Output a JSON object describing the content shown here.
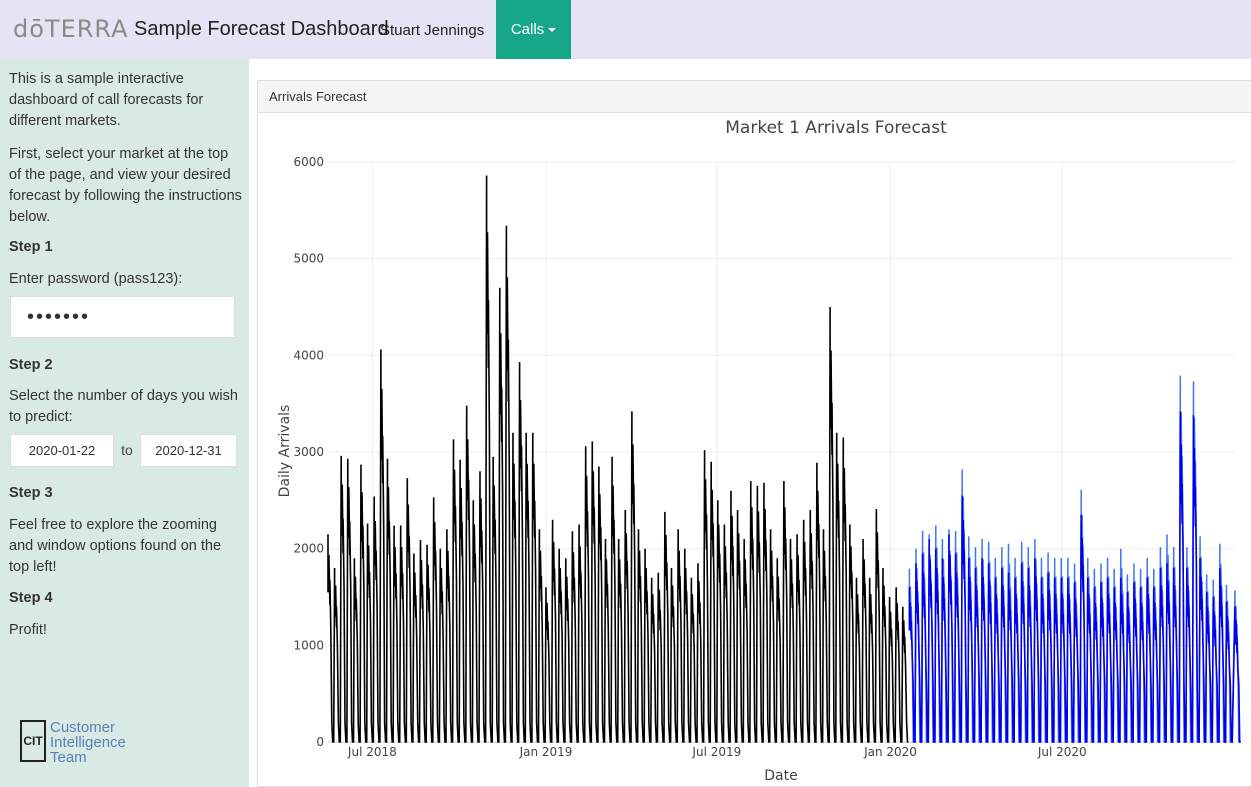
{
  "navbar": {
    "logo": "dōTERRA",
    "title": "Sample Forecast Dashboard",
    "user": "Stuart Jennings",
    "calls_menu": "Calls"
  },
  "sidebar": {
    "intro": "This is a sample interactive dashboard of call forecasts for different markets.",
    "instructions": "First, select your market at the top of the page, and view your desired forecast by following the instructions below.",
    "step1_title": "Step 1",
    "step1_label": "Enter password (pass123):",
    "password_value": "•••••••",
    "step2_title": "Step 2",
    "step2_label": "Select the number of days you wish to predict:",
    "date_start": "2020-01-22",
    "date_to": "to",
    "date_end": "2020-12-31",
    "step3_title": "Step 3",
    "step3_text": "Feel free to explore the zooming and window options found on the top left!",
    "step4_title": "Step 4",
    "step4_text": "Profit!",
    "logo_mark": "CIT",
    "logo_line1": "Customer",
    "logo_line2": "Intelligence",
    "logo_line3": "Team"
  },
  "panel": {
    "heading": "Arrivals Forecast"
  },
  "chart_data": {
    "type": "line",
    "title": "Market 1 Arrivals Forecast",
    "xlabel": "Date",
    "ylabel": "Daily Arrivals",
    "x_range": [
      "2018-05-15",
      "2020-12-31"
    ],
    "ylim": [
      0,
      6000
    ],
    "yticks": [
      0,
      1000,
      2000,
      3000,
      4000,
      5000,
      6000
    ],
    "xticks": [
      {
        "date": "2018-07-01",
        "label": "Jul 2018"
      },
      {
        "date": "2019-01-01",
        "label": "Jan 2019"
      },
      {
        "date": "2019-07-01",
        "label": "Jul 2019"
      },
      {
        "date": "2020-01-01",
        "label": "Jan 2020"
      },
      {
        "date": "2020-07-01",
        "label": "Jul 2020"
      }
    ],
    "grid": true,
    "colors": {
      "actual": "#000000",
      "forecast": "#0000ee",
      "forecast_upper": "#4477ee"
    },
    "actual_peaks": [
      {
        "date": "2018-05-15",
        "value": 2150
      },
      {
        "date": "2018-05-22",
        "value": 1800
      },
      {
        "date": "2018-05-29",
        "value": 2960
      },
      {
        "date": "2018-06-05",
        "value": 2930
      },
      {
        "date": "2018-06-12",
        "value": 1900
      },
      {
        "date": "2018-06-19",
        "value": 2870
      },
      {
        "date": "2018-06-26",
        "value": 2260
      },
      {
        "date": "2018-07-03",
        "value": 2540
      },
      {
        "date": "2018-07-10",
        "value": 4060
      },
      {
        "date": "2018-07-17",
        "value": 2930
      },
      {
        "date": "2018-07-24",
        "value": 2240
      },
      {
        "date": "2018-07-31",
        "value": 2240
      },
      {
        "date": "2018-08-07",
        "value": 2730
      },
      {
        "date": "2018-08-14",
        "value": 1950
      },
      {
        "date": "2018-08-21",
        "value": 2090
      },
      {
        "date": "2018-08-28",
        "value": 2040
      },
      {
        "date": "2018-09-04",
        "value": 2530
      },
      {
        "date": "2018-09-11",
        "value": 2000
      },
      {
        "date": "2018-09-18",
        "value": 2200
      },
      {
        "date": "2018-09-25",
        "value": 3130
      },
      {
        "date": "2018-10-02",
        "value": 2920
      },
      {
        "date": "2018-10-09",
        "value": 3480
      },
      {
        "date": "2018-10-16",
        "value": 2500
      },
      {
        "date": "2018-10-23",
        "value": 2800
      },
      {
        "date": "2018-10-30",
        "value": 5860
      },
      {
        "date": "2018-11-06",
        "value": 2950
      },
      {
        "date": "2018-11-13",
        "value": 4700
      },
      {
        "date": "2018-11-20",
        "value": 5340
      },
      {
        "date": "2018-11-27",
        "value": 3200
      },
      {
        "date": "2018-12-04",
        "value": 3930
      },
      {
        "date": "2018-12-11",
        "value": 3200
      },
      {
        "date": "2018-12-18",
        "value": 3200
      },
      {
        "date": "2018-12-25",
        "value": 2200
      },
      {
        "date": "2019-01-01",
        "value": 1600
      },
      {
        "date": "2019-01-08",
        "value": 2300
      },
      {
        "date": "2019-01-15",
        "value": 2000
      },
      {
        "date": "2019-01-22",
        "value": 1900
      },
      {
        "date": "2019-01-29",
        "value": 2180
      },
      {
        "date": "2019-02-05",
        "value": 2250
      },
      {
        "date": "2019-02-12",
        "value": 3060
      },
      {
        "date": "2019-02-19",
        "value": 3110
      },
      {
        "date": "2019-02-26",
        "value": 2850
      },
      {
        "date": "2019-03-05",
        "value": 2100
      },
      {
        "date": "2019-03-12",
        "value": 2950
      },
      {
        "date": "2019-03-19",
        "value": 2100
      },
      {
        "date": "2019-03-26",
        "value": 2400
      },
      {
        "date": "2019-04-02",
        "value": 3420
      },
      {
        "date": "2019-04-09",
        "value": 2200
      },
      {
        "date": "2019-04-16",
        "value": 2000
      },
      {
        "date": "2019-04-23",
        "value": 1700
      },
      {
        "date": "2019-04-30",
        "value": 1750
      },
      {
        "date": "2019-05-07",
        "value": 2380
      },
      {
        "date": "2019-05-14",
        "value": 1800
      },
      {
        "date": "2019-05-21",
        "value": 2200
      },
      {
        "date": "2019-05-28",
        "value": 2000
      },
      {
        "date": "2019-06-04",
        "value": 1700
      },
      {
        "date": "2019-06-11",
        "value": 1850
      },
      {
        "date": "2019-06-18",
        "value": 3020
      },
      {
        "date": "2019-06-25",
        "value": 2900
      },
      {
        "date": "2019-07-02",
        "value": 2500
      },
      {
        "date": "2019-07-09",
        "value": 2250
      },
      {
        "date": "2019-07-16",
        "value": 2600
      },
      {
        "date": "2019-07-23",
        "value": 2400
      },
      {
        "date": "2019-07-30",
        "value": 2100
      },
      {
        "date": "2019-08-06",
        "value": 2700
      },
      {
        "date": "2019-08-13",
        "value": 2650
      },
      {
        "date": "2019-08-20",
        "value": 2680
      },
      {
        "date": "2019-08-27",
        "value": 2200
      },
      {
        "date": "2019-09-03",
        "value": 1900
      },
      {
        "date": "2019-09-10",
        "value": 2700
      },
      {
        "date": "2019-09-17",
        "value": 2100
      },
      {
        "date": "2019-09-24",
        "value": 2150
      },
      {
        "date": "2019-10-01",
        "value": 2300
      },
      {
        "date": "2019-10-08",
        "value": 2400
      },
      {
        "date": "2019-10-15",
        "value": 2890
      },
      {
        "date": "2019-10-22",
        "value": 2200
      },
      {
        "date": "2019-10-29",
        "value": 4500
      },
      {
        "date": "2019-11-05",
        "value": 3200
      },
      {
        "date": "2019-11-12",
        "value": 3150
      },
      {
        "date": "2019-11-19",
        "value": 2250
      },
      {
        "date": "2019-11-26",
        "value": 1700
      },
      {
        "date": "2019-12-03",
        "value": 2100
      },
      {
        "date": "2019-12-10",
        "value": 1700
      },
      {
        "date": "2019-12-17",
        "value": 2410
      },
      {
        "date": "2019-12-24",
        "value": 1800
      },
      {
        "date": "2019-12-31",
        "value": 1500
      },
      {
        "date": "2020-01-07",
        "value": 1600
      },
      {
        "date": "2020-01-14",
        "value": 1400
      }
    ],
    "forecast_peaks": [
      {
        "date": "2020-01-21",
        "value": 1600
      },
      {
        "date": "2020-01-28",
        "value": 1850
      },
      {
        "date": "2020-02-04",
        "value": 1950
      },
      {
        "date": "2020-02-11",
        "value": 2100
      },
      {
        "date": "2020-02-18",
        "value": 2000
      },
      {
        "date": "2020-02-25",
        "value": 1900
      },
      {
        "date": "2020-03-03",
        "value": 2150
      },
      {
        "date": "2020-03-10",
        "value": 1950
      },
      {
        "date": "2020-03-17",
        "value": 2550
      },
      {
        "date": "2020-03-24",
        "value": 1900
      },
      {
        "date": "2020-03-31",
        "value": 1800
      },
      {
        "date": "2020-04-07",
        "value": 1900
      },
      {
        "date": "2020-04-14",
        "value": 1850
      },
      {
        "date": "2020-04-21",
        "value": 1700
      },
      {
        "date": "2020-04-28",
        "value": 1800
      },
      {
        "date": "2020-05-05",
        "value": 1750
      },
      {
        "date": "2020-05-12",
        "value": 1700
      },
      {
        "date": "2020-05-19",
        "value": 1850
      },
      {
        "date": "2020-05-26",
        "value": 1800
      },
      {
        "date": "2020-06-02",
        "value": 1900
      },
      {
        "date": "2020-06-09",
        "value": 1700
      },
      {
        "date": "2020-06-16",
        "value": 1750
      },
      {
        "date": "2020-06-23",
        "value": 1700
      },
      {
        "date": "2020-06-30",
        "value": 1700
      },
      {
        "date": "2020-07-07",
        "value": 1700
      },
      {
        "date": "2020-07-14",
        "value": 1650
      },
      {
        "date": "2020-07-21",
        "value": 2350
      },
      {
        "date": "2020-07-28",
        "value": 1700
      },
      {
        "date": "2020-08-04",
        "value": 1600
      },
      {
        "date": "2020-08-11",
        "value": 1650
      },
      {
        "date": "2020-08-18",
        "value": 1700
      },
      {
        "date": "2020-08-25",
        "value": 1600
      },
      {
        "date": "2020-09-01",
        "value": 1700
      },
      {
        "date": "2020-09-08",
        "value": 1550
      },
      {
        "date": "2020-09-15",
        "value": 1650
      },
      {
        "date": "2020-09-22",
        "value": 1600
      },
      {
        "date": "2020-09-29",
        "value": 1700
      },
      {
        "date": "2020-10-06",
        "value": 1600
      },
      {
        "date": "2020-10-13",
        "value": 1800
      },
      {
        "date": "2020-10-20",
        "value": 1850
      },
      {
        "date": "2020-10-27",
        "value": 1800
      },
      {
        "date": "2020-11-03",
        "value": 3420
      },
      {
        "date": "2020-11-10",
        "value": 1800
      },
      {
        "date": "2020-11-17",
        "value": 3380
      },
      {
        "date": "2020-11-24",
        "value": 1900
      },
      {
        "date": "2020-12-01",
        "value": 1550
      },
      {
        "date": "2020-12-08",
        "value": 1500
      },
      {
        "date": "2020-12-15",
        "value": 1800
      },
      {
        "date": "2020-12-22",
        "value": 1450
      },
      {
        "date": "2020-12-31",
        "value": 1400
      }
    ],
    "forecast_upper_peaks": [
      {
        "date": "2020-01-28",
        "value": 2000
      },
      {
        "date": "2020-02-11",
        "value": 2150
      },
      {
        "date": "2020-02-25",
        "value": 2100
      },
      {
        "date": "2020-03-03",
        "value": 2200
      },
      {
        "date": "2020-03-17",
        "value": 2820
      },
      {
        "date": "2020-04-07",
        "value": 2100
      },
      {
        "date": "2020-05-05",
        "value": 2050
      },
      {
        "date": "2020-06-02",
        "value": 2100
      },
      {
        "date": "2020-07-21",
        "value": 2610
      },
      {
        "date": "2020-09-01",
        "value": 2000
      },
      {
        "date": "2020-10-20",
        "value": 2150
      },
      {
        "date": "2020-11-03",
        "value": 3790
      },
      {
        "date": "2020-11-17",
        "value": 3730
      },
      {
        "date": "2020-12-15",
        "value": 2050
      }
    ]
  }
}
